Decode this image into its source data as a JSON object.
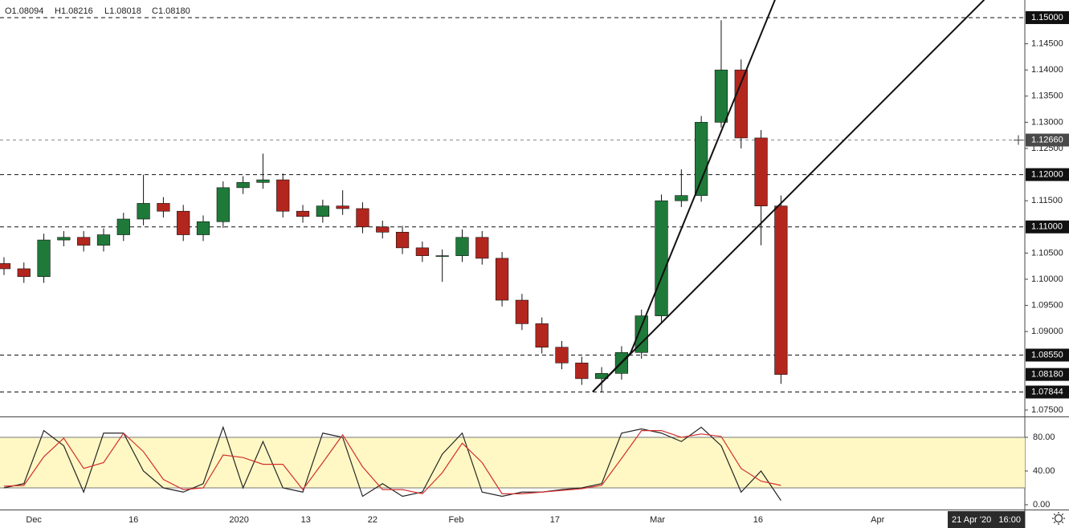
{
  "chart_data": [
    {
      "type": "candlestick",
      "ohlc_header": [
        "O1.08094",
        "H1.08216",
        "L1.08018",
        "C1.08180"
      ],
      "x": [
        -3,
        -1,
        1,
        3,
        5,
        7,
        9,
        11,
        13,
        15,
        17,
        19,
        21,
        23,
        25,
        27,
        29,
        31,
        33,
        35,
        37,
        39,
        41,
        43,
        45,
        47,
        49,
        51,
        53,
        55,
        57,
        59,
        61,
        63,
        65,
        67,
        69,
        71,
        73,
        75
      ],
      "open": [
        1.103,
        1.102,
        1.1005,
        1.1075,
        1.108,
        1.1065,
        1.1085,
        1.1115,
        1.1145,
        1.113,
        1.1085,
        1.111,
        1.1175,
        1.1185,
        1.119,
        1.113,
        1.112,
        1.114,
        1.1135,
        1.11,
        1.109,
        1.106,
        1.1045,
        1.1045,
        1.108,
        1.104,
        1.096,
        1.0915,
        1.087,
        1.084,
        1.081,
        1.082,
        1.086,
        1.093,
        1.115,
        1.116,
        1.13,
        1.14,
        1.127,
        1.114
      ],
      "high": [
        1.1042,
        1.1032,
        1.1087,
        1.1092,
        1.1092,
        1.1097,
        1.1127,
        1.12,
        1.1157,
        1.1142,
        1.1122,
        1.1187,
        1.1197,
        1.124,
        1.1202,
        1.1142,
        1.1152,
        1.117,
        1.1147,
        1.1112,
        1.1102,
        1.1072,
        1.1057,
        1.1095,
        1.1092,
        1.1052,
        1.0972,
        1.0927,
        1.0882,
        1.0852,
        1.0832,
        1.0872,
        1.0942,
        1.1162,
        1.121,
        1.1312,
        1.1495,
        1.142,
        1.1285,
        1.116
      ],
      "low": [
        1.1008,
        1.0993,
        1.0993,
        1.1063,
        1.1053,
        1.1053,
        1.1073,
        1.1103,
        1.1118,
        1.1073,
        1.1073,
        1.1098,
        1.1163,
        1.1173,
        1.1118,
        1.1108,
        1.1108,
        1.1123,
        1.1088,
        1.1078,
        1.1048,
        1.1033,
        1.0995,
        1.1033,
        1.1028,
        1.0948,
        1.0903,
        1.0858,
        1.0828,
        1.0798,
        1.0784,
        1.0808,
        1.0848,
        1.0918,
        1.1138,
        1.1148,
        1.129,
        1.125,
        1.1065,
        1.08
      ],
      "close": [
        1.102,
        1.1005,
        1.1075,
        1.108,
        1.1065,
        1.1085,
        1.1115,
        1.1145,
        1.113,
        1.1085,
        1.111,
        1.1175,
        1.1185,
        1.119,
        1.113,
        1.112,
        1.114,
        1.1135,
        1.11,
        1.109,
        1.106,
        1.1045,
        1.1045,
        1.108,
        1.104,
        1.096,
        1.0915,
        1.087,
        1.084,
        1.081,
        1.082,
        1.086,
        1.093,
        1.115,
        1.116,
        1.13,
        1.14,
        1.127,
        1.114,
        1.0818
      ],
      "up_color": "#1f7a3a",
      "down_color": "#b3261e",
      "xlim": [
        -3.4,
        99.4
      ],
      "xticks": [
        {
          "value": 0,
          "label": "Dec"
        },
        {
          "value": 10,
          "label": "16"
        },
        {
          "value": 20.6,
          "label": "2020"
        },
        {
          "value": 27.3,
          "label": "13"
        },
        {
          "value": 34,
          "label": "22"
        },
        {
          "value": 42.4,
          "label": "Feb"
        },
        {
          "value": 52.3,
          "label": "17"
        },
        {
          "value": 62.6,
          "label": "Mar"
        },
        {
          "value": 72.7,
          "label": "16"
        },
        {
          "value": 84.7,
          "label": "Apr"
        }
      ],
      "ylim": [
        1.07377,
        1.15337
      ],
      "yticks": [
        {
          "value": 1.075,
          "label": "1.07500"
        },
        {
          "value": 1.09,
          "label": "1.09000"
        },
        {
          "value": 1.095,
          "label": "1.09500"
        },
        {
          "value": 1.1,
          "label": "1.10000"
        },
        {
          "value": 1.105,
          "label": "1.10500"
        },
        {
          "value": 1.115,
          "label": "1.11500"
        },
        {
          "value": 1.125,
          "label": "1.12500"
        },
        {
          "value": 1.13,
          "label": "1.13000"
        },
        {
          "value": 1.135,
          "label": "1.13500"
        },
        {
          "value": 1.14,
          "label": "1.14000"
        },
        {
          "value": 1.145,
          "label": "1.14500"
        }
      ],
      "levels": [
        {
          "value": 1.15,
          "label": "1.15000"
        },
        {
          "value": 1.12,
          "label": "1.12000"
        },
        {
          "value": 1.11,
          "label": "1.11000"
        },
        {
          "value": 1.0855,
          "label": "1.08550"
        },
        {
          "value": 1.07844,
          "label": "1.07844"
        }
      ],
      "last_price": {
        "value": 1.0818,
        "label": "1.08180"
      },
      "crosshair": {
        "value": 1.1266,
        "label": "1.12660",
        "time": "21 Apr '20   16:00"
      },
      "trendlines": [
        {
          "x": [
            56.1,
            59.9,
            74.4
          ],
          "y": [
            1.0785,
            1.0859,
            1.1534
          ]
        },
        {
          "x": [
            56.1,
            95.4
          ],
          "y": [
            1.0785,
            1.1534
          ]
        }
      ]
    },
    {
      "type": "line",
      "x": [
        -3,
        -1,
        1,
        3,
        5,
        7,
        9,
        11,
        13,
        15,
        17,
        19,
        21,
        23,
        25,
        27,
        29,
        31,
        33,
        35,
        37,
        39,
        41,
        43,
        45,
        47,
        49,
        51,
        53,
        55,
        57,
        59,
        61,
        63,
        65,
        67,
        69,
        71,
        73,
        75
      ],
      "series": [
        {
          "color": "#262626",
          "values": [
            20,
            25,
            88,
            70,
            15,
            85,
            85,
            40,
            20,
            15,
            25,
            92,
            20,
            75,
            20,
            15,
            85,
            80,
            10,
            25,
            10,
            15,
            60,
            85,
            15,
            10,
            15,
            15,
            18,
            20,
            25,
            85,
            90,
            85,
            75,
            92,
            70,
            15,
            40,
            5
          ]
        },
        {
          "color": "#d32f2f",
          "values": [
            22,
            23,
            57,
            79,
            43,
            50,
            85,
            63,
            30,
            18,
            20,
            59,
            56,
            48,
            48,
            18,
            50,
            83,
            45,
            18,
            18,
            13,
            38,
            73,
            50,
            13,
            13,
            15,
            17,
            19,
            23,
            55,
            88,
            88,
            80,
            84,
            81,
            43,
            28,
            23
          ]
        }
      ],
      "band": [
        20,
        80
      ],
      "band_color": "#fff8c4",
      "xlim": [
        -3.4,
        99.4
      ],
      "ylim": [
        -5.7,
        103.8
      ],
      "yticks": [
        {
          "value": 0,
          "label": "0.00"
        },
        {
          "value": 40,
          "label": "40.00"
        },
        {
          "value": 80,
          "label": "80.00"
        }
      ]
    }
  ]
}
